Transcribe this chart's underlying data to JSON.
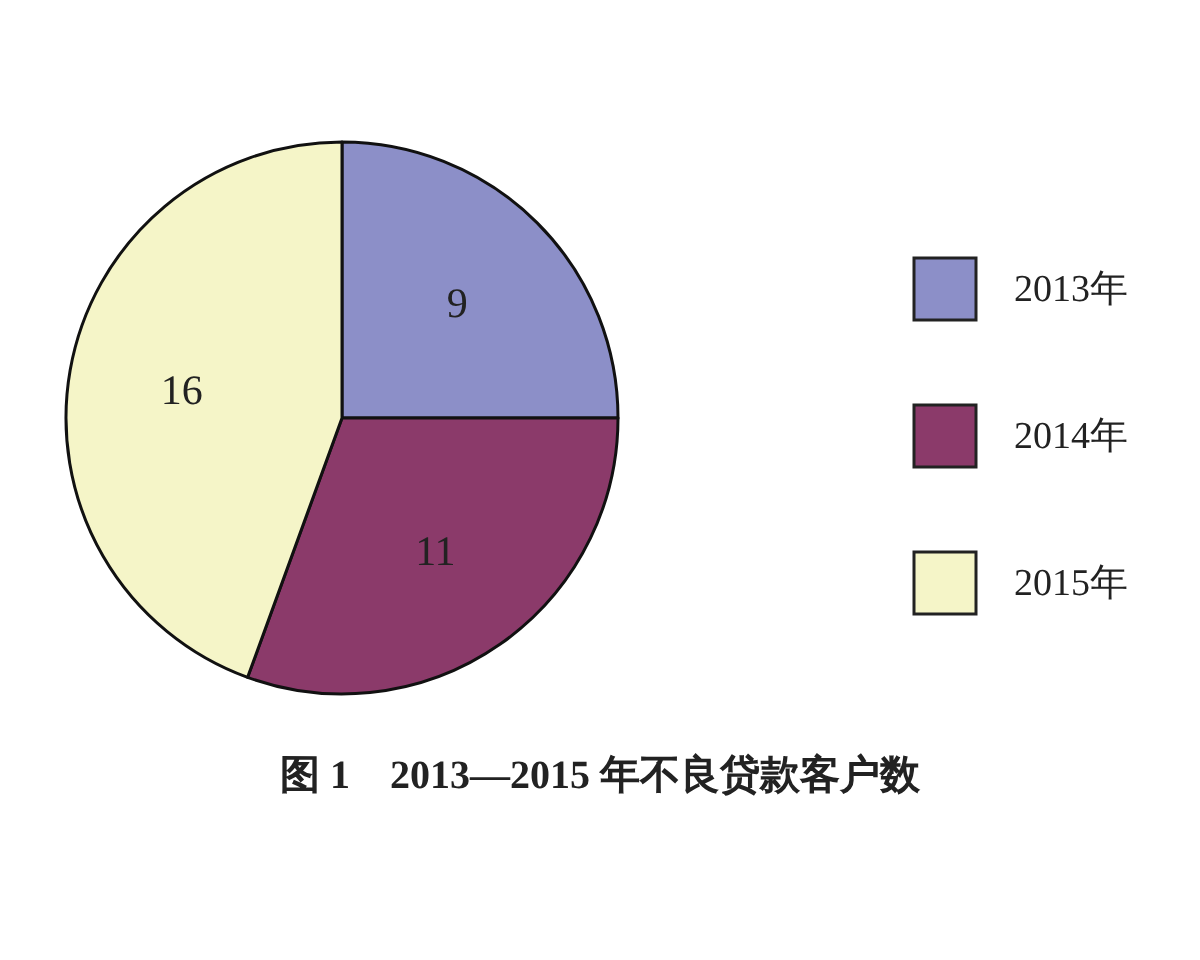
{
  "chart_data": {
    "type": "pie",
    "title": "图 1　2013—2015 年不良贷款客户数",
    "categories": [
      "2013年",
      "2014年",
      "2015年"
    ],
    "values": [
      9,
      11,
      16
    ],
    "colors": [
      "#8c8fc8",
      "#8b3a6a",
      "#f5f5c8"
    ],
    "data_labels": true,
    "legend": "right"
  }
}
